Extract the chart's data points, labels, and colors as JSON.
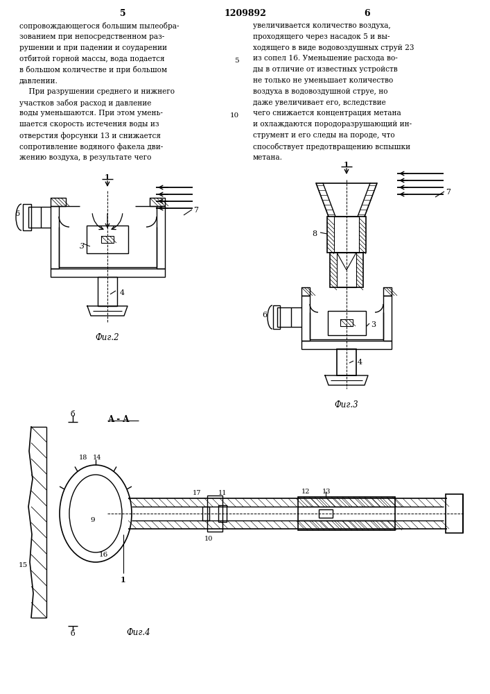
{
  "page_number_left": "5",
  "page_number_right": "6",
  "patent_number": "1209892",
  "background_color": "#ffffff",
  "text_color": "#000000",
  "left_column_text": [
    "сопровождающегося большим пылеобра-",
    "зованием при непосредственном раз-",
    "рушении и при падении и соударении",
    "отбитой горной массы, вода подается",
    "в большом количестве и при большом",
    "давлении.",
    "    При разрушении среднего и нижнего",
    "участков забоя расход и давление",
    "воды уменьшаются. При этом умень-",
    "шается скорость истечения воды из",
    "отверстия форсунки 13 и снижается",
    "сопротивление водяного факела дви-",
    "жению воздуха, в результате чего"
  ],
  "right_column_text": [
    "увеличивается количество воздуха,",
    "проходящего через насадок 5 и вы-",
    "ходящего в виде водовоздушных струй 23",
    "из сопел 16. Уменьшение расхода во-",
    "ды в отличие от известных устройств",
    "не только не уменьшает количество",
    "воздуха в водовоздушной струе, но",
    "даже увеличивает его, вследствие",
    "чего снижается концентрация метана",
    "и охлаждаются породоразрушающий ин-",
    "струмент и его следы на породе, что",
    "способствует предотвращению вспышки",
    "метана."
  ],
  "fig2_label": "Фиг.2",
  "fig3_label": "Фиг.3",
  "fig4_label": "Фиг.4"
}
